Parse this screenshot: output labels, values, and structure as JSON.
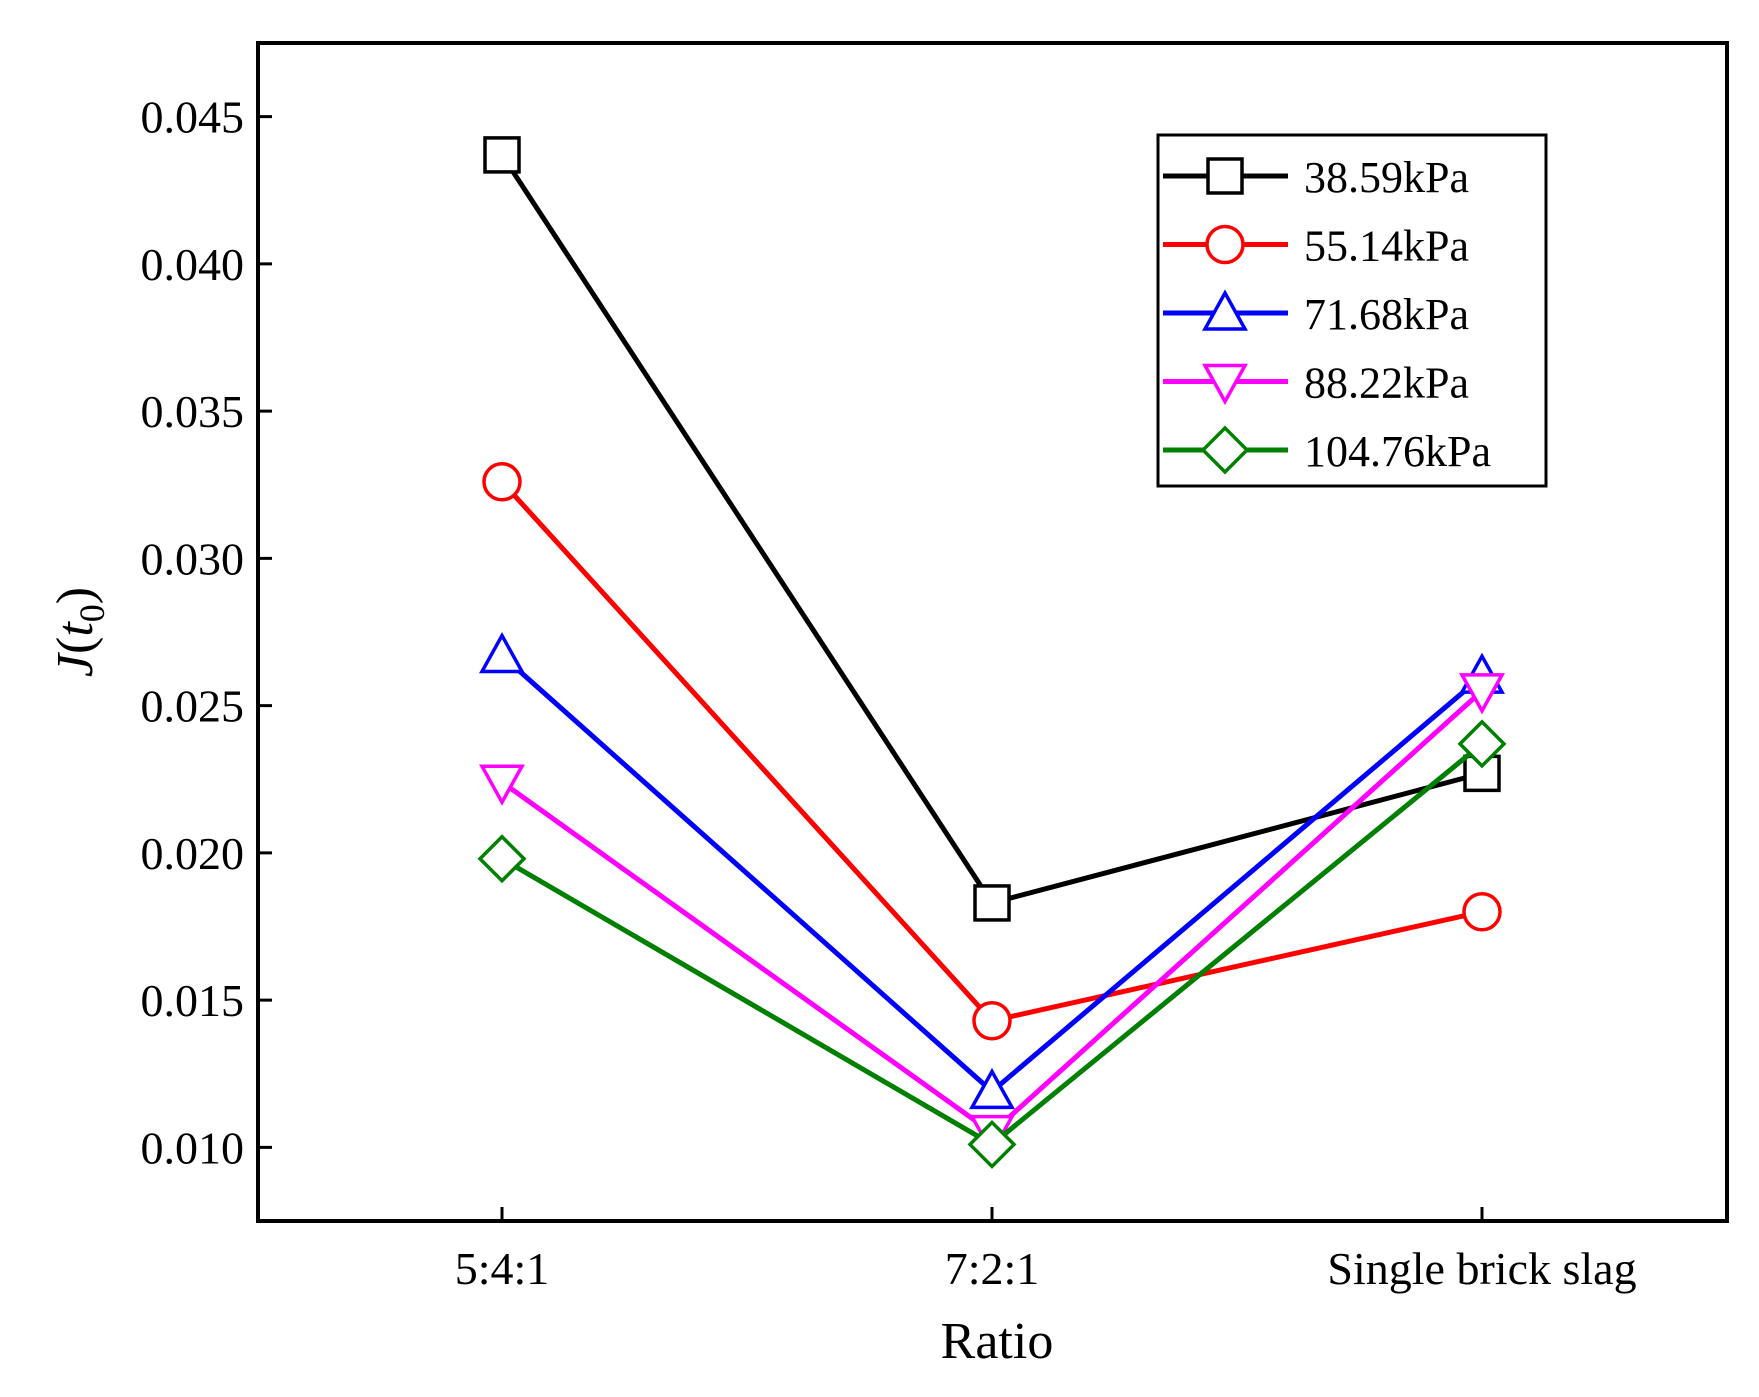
{
  "chart_data": {
    "type": "line",
    "title": "",
    "xlabel": "Ratio",
    "ylabel": {
      "main": "J",
      "open": "(",
      "var": "t",
      "sub": "0",
      "close": ")"
    },
    "categories": [
      "5:4:1",
      "7:2:1",
      "Single brick slag"
    ],
    "ylim": [
      0.0075,
      0.0475
    ],
    "yticks": [
      0.01,
      0.015,
      0.02,
      0.025,
      0.03,
      0.035,
      0.04,
      0.045
    ],
    "ytick_labels": [
      "0.010",
      "0.015",
      "0.020",
      "0.025",
      "0.030",
      "0.035",
      "0.040",
      "0.045"
    ],
    "legend_position": "top-right",
    "grid": false,
    "series": [
      {
        "name": "38.59kPa",
        "color": "#000000",
        "marker": "square",
        "values": [
          0.0437,
          0.0183,
          0.0227
        ]
      },
      {
        "name": "55.14kPa",
        "color": "#ff0000",
        "marker": "circle",
        "values": [
          0.0326,
          0.0143,
          0.018
        ]
      },
      {
        "name": "71.68kPa",
        "color": "#0000ff",
        "marker": "triangle-up",
        "values": [
          0.0267,
          0.0119,
          0.026
        ]
      },
      {
        "name": "88.22kPa",
        "color": "#ff00ff",
        "marker": "triangle-down",
        "values": [
          0.0224,
          0.0105,
          0.0255
        ]
      },
      {
        "name": "104.76kPa",
        "color": "#008000",
        "marker": "diamond",
        "values": [
          0.0198,
          0.0101,
          0.0237
        ]
      }
    ]
  }
}
